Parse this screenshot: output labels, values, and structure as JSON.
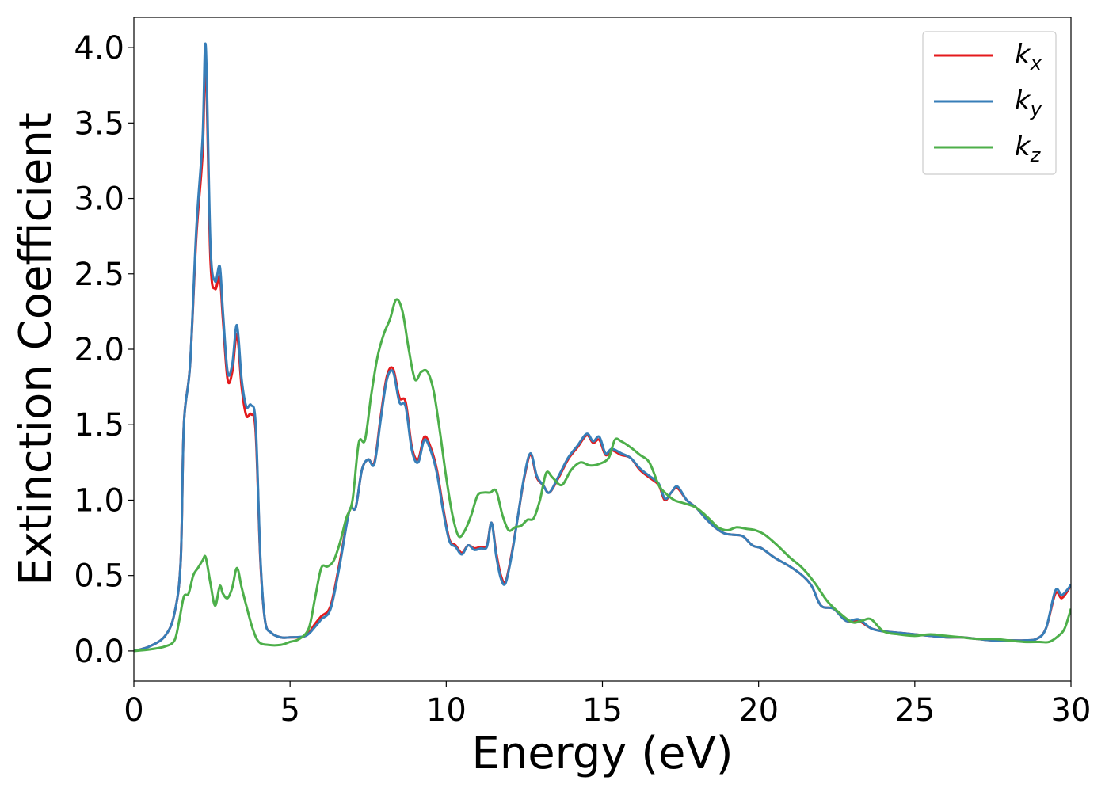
{
  "chart_data": {
    "type": "line",
    "title": "",
    "xlabel": "Energy (eV)",
    "ylabel": "Extinction Coefficient",
    "xlim": [
      0,
      30
    ],
    "ylim": [
      -0.2,
      4.2
    ],
    "xticks": [
      0,
      5,
      10,
      15,
      20,
      25,
      30
    ],
    "xtick_labels": [
      "0",
      "5",
      "10",
      "15",
      "20",
      "25",
      "30"
    ],
    "yticks": [
      0.0,
      0.5,
      1.0,
      1.5,
      2.0,
      2.5,
      3.0,
      3.5,
      4.0
    ],
    "ytick_labels": [
      "0.0",
      "0.5",
      "1.0",
      "1.5",
      "2.0",
      "2.5",
      "3.0",
      "3.5",
      "4.0"
    ],
    "grid": false,
    "legend_position": "top-right",
    "series": [
      {
        "name": "k_x",
        "label_base": "k",
        "label_sub": "x",
        "color": "#e41a1c",
        "x": [
          0,
          0.5,
          1,
          1.3,
          1.5,
          1.6,
          1.8,
          2.0,
          2.2,
          2.3,
          2.45,
          2.6,
          2.75,
          2.85,
          3.0,
          3.15,
          3.3,
          3.45,
          3.6,
          3.75,
          3.9,
          4.05,
          4.2,
          4.4,
          4.7,
          5.0,
          5.5,
          5.8,
          6.0,
          6.3,
          6.6,
          6.9,
          7.1,
          7.3,
          7.5,
          7.7,
          7.9,
          8.1,
          8.3,
          8.5,
          8.7,
          8.9,
          9.1,
          9.3,
          9.5,
          9.7,
          9.9,
          10.1,
          10.3,
          10.5,
          10.7,
          10.9,
          11.1,
          11.3,
          11.45,
          11.6,
          11.75,
          11.9,
          12.1,
          12.3,
          12.5,
          12.7,
          12.9,
          13.1,
          13.3,
          13.6,
          13.9,
          14.2,
          14.5,
          14.7,
          14.9,
          15.1,
          15.3,
          15.6,
          15.9,
          16.2,
          16.5,
          16.8,
          17.0,
          17.2,
          17.4,
          17.7,
          18.0,
          18.3,
          18.6,
          18.9,
          19.2,
          19.5,
          19.8,
          20.1,
          20.5,
          21.0,
          21.4,
          21.7,
          22.0,
          22.4,
          22.8,
          23.2,
          23.6,
          24.0,
          24.5,
          25.0,
          25.5,
          26.0,
          26.5,
          27.0,
          27.5,
          28.0,
          28.5,
          28.9,
          29.2,
          29.5,
          29.7,
          29.9,
          30.0
        ],
        "y": [
          0.0,
          0.03,
          0.1,
          0.25,
          0.6,
          1.5,
          1.9,
          2.75,
          3.3,
          3.9,
          2.6,
          2.4,
          2.48,
          2.2,
          1.8,
          1.85,
          2.1,
          1.75,
          1.56,
          1.57,
          1.45,
          0.6,
          0.2,
          0.12,
          0.09,
          0.09,
          0.1,
          0.18,
          0.23,
          0.3,
          0.6,
          0.93,
          0.95,
          1.2,
          1.27,
          1.25,
          1.55,
          1.82,
          1.87,
          1.68,
          1.65,
          1.35,
          1.27,
          1.42,
          1.35,
          1.2,
          0.95,
          0.74,
          0.7,
          0.65,
          0.7,
          0.68,
          0.69,
          0.7,
          0.85,
          0.65,
          0.5,
          0.46,
          0.65,
          0.9,
          1.15,
          1.3,
          1.15,
          1.1,
          1.05,
          1.15,
          1.27,
          1.35,
          1.43,
          1.38,
          1.4,
          1.3,
          1.33,
          1.3,
          1.28,
          1.2,
          1.15,
          1.1,
          1.0,
          1.05,
          1.08,
          1.0,
          0.95,
          0.88,
          0.82,
          0.78,
          0.77,
          0.76,
          0.7,
          0.68,
          0.62,
          0.56,
          0.5,
          0.43,
          0.3,
          0.28,
          0.2,
          0.2,
          0.15,
          0.13,
          0.12,
          0.11,
          0.1,
          0.09,
          0.09,
          0.08,
          0.07,
          0.07,
          0.07,
          0.08,
          0.15,
          0.38,
          0.35,
          0.4,
          0.44
        ]
      },
      {
        "name": "k_y",
        "label_base": "k",
        "label_sub": "y",
        "color": "#377eb8",
        "x": [
          0,
          0.5,
          1,
          1.3,
          1.5,
          1.6,
          1.8,
          2.0,
          2.2,
          2.3,
          2.45,
          2.6,
          2.75,
          2.85,
          3.0,
          3.15,
          3.3,
          3.45,
          3.6,
          3.75,
          3.9,
          4.05,
          4.2,
          4.4,
          4.7,
          5.0,
          5.5,
          5.8,
          6.0,
          6.3,
          6.6,
          6.9,
          7.1,
          7.3,
          7.5,
          7.7,
          7.9,
          8.1,
          8.3,
          8.5,
          8.7,
          8.9,
          9.1,
          9.3,
          9.5,
          9.7,
          9.9,
          10.1,
          10.3,
          10.5,
          10.7,
          10.9,
          11.1,
          11.3,
          11.45,
          11.6,
          11.75,
          11.9,
          12.1,
          12.3,
          12.5,
          12.7,
          12.9,
          13.1,
          13.3,
          13.6,
          13.9,
          14.2,
          14.5,
          14.7,
          14.9,
          15.1,
          15.3,
          15.6,
          15.9,
          16.2,
          16.5,
          16.8,
          17.0,
          17.2,
          17.4,
          17.7,
          18.0,
          18.3,
          18.6,
          18.9,
          19.2,
          19.5,
          19.8,
          20.1,
          20.5,
          21.0,
          21.4,
          21.7,
          22.0,
          22.4,
          22.8,
          23.2,
          23.6,
          24.0,
          24.5,
          25.0,
          25.5,
          26.0,
          26.5,
          27.0,
          27.5,
          28.0,
          28.5,
          28.9,
          29.2,
          29.5,
          29.7,
          29.9,
          30.0
        ],
        "y": [
          0.0,
          0.03,
          0.1,
          0.25,
          0.6,
          1.5,
          1.9,
          2.8,
          3.4,
          4.01,
          2.7,
          2.45,
          2.55,
          2.25,
          1.85,
          1.9,
          2.16,
          1.8,
          1.62,
          1.63,
          1.5,
          0.62,
          0.2,
          0.12,
          0.09,
          0.09,
          0.1,
          0.16,
          0.21,
          0.28,
          0.58,
          0.93,
          0.95,
          1.2,
          1.27,
          1.24,
          1.53,
          1.8,
          1.85,
          1.65,
          1.62,
          1.33,
          1.25,
          1.4,
          1.33,
          1.18,
          0.93,
          0.73,
          0.69,
          0.64,
          0.7,
          0.67,
          0.68,
          0.69,
          0.85,
          0.63,
          0.48,
          0.45,
          0.64,
          0.9,
          1.16,
          1.31,
          1.16,
          1.1,
          1.05,
          1.16,
          1.28,
          1.36,
          1.44,
          1.39,
          1.42,
          1.31,
          1.34,
          1.31,
          1.28,
          1.21,
          1.16,
          1.11,
          1.01,
          1.05,
          1.09,
          1.0,
          0.95,
          0.88,
          0.82,
          0.78,
          0.77,
          0.76,
          0.7,
          0.68,
          0.62,
          0.56,
          0.5,
          0.43,
          0.3,
          0.28,
          0.2,
          0.21,
          0.15,
          0.13,
          0.12,
          0.11,
          0.1,
          0.09,
          0.09,
          0.08,
          0.07,
          0.07,
          0.07,
          0.08,
          0.15,
          0.4,
          0.37,
          0.41,
          0.44
        ]
      },
      {
        "name": "k_z",
        "label_base": "k",
        "label_sub": "z",
        "color": "#4daf4a",
        "x": [
          0,
          0.5,
          1,
          1.3,
          1.45,
          1.6,
          1.75,
          1.9,
          2.05,
          2.2,
          2.3,
          2.45,
          2.6,
          2.75,
          2.85,
          3.0,
          3.15,
          3.3,
          3.45,
          3.6,
          3.8,
          4.0,
          4.3,
          4.7,
          5.0,
          5.3,
          5.6,
          5.8,
          6.0,
          6.2,
          6.4,
          6.6,
          6.8,
          7.0,
          7.2,
          7.4,
          7.6,
          7.8,
          8.0,
          8.2,
          8.4,
          8.6,
          8.8,
          9.0,
          9.2,
          9.4,
          9.6,
          9.8,
          10.0,
          10.2,
          10.4,
          10.6,
          10.8,
          11.0,
          11.2,
          11.4,
          11.6,
          11.8,
          12.0,
          12.2,
          12.4,
          12.6,
          12.8,
          13.0,
          13.2,
          13.4,
          13.7,
          14.0,
          14.3,
          14.6,
          14.9,
          15.2,
          15.4,
          15.6,
          15.9,
          16.2,
          16.5,
          16.8,
          17.0,
          17.3,
          17.6,
          18.0,
          18.4,
          18.7,
          19.0,
          19.3,
          19.6,
          19.9,
          20.2,
          20.6,
          21.0,
          21.4,
          21.8,
          22.2,
          22.6,
          23.0,
          23.3,
          23.6,
          24.0,
          24.5,
          25.0,
          25.5,
          26.0,
          26.5,
          27.0,
          27.5,
          28.0,
          28.5,
          29.0,
          29.3,
          29.6,
          29.8,
          30.0
        ],
        "y": [
          0.0,
          0.01,
          0.03,
          0.07,
          0.2,
          0.36,
          0.38,
          0.5,
          0.55,
          0.6,
          0.62,
          0.45,
          0.3,
          0.43,
          0.38,
          0.35,
          0.42,
          0.55,
          0.42,
          0.3,
          0.15,
          0.06,
          0.04,
          0.04,
          0.06,
          0.08,
          0.15,
          0.35,
          0.55,
          0.56,
          0.6,
          0.72,
          0.88,
          1.0,
          1.38,
          1.4,
          1.7,
          1.95,
          2.1,
          2.2,
          2.33,
          2.25,
          2.0,
          1.8,
          1.85,
          1.85,
          1.72,
          1.45,
          1.15,
          0.9,
          0.76,
          0.8,
          0.9,
          1.03,
          1.05,
          1.05,
          1.06,
          0.9,
          0.8,
          0.82,
          0.83,
          0.87,
          0.88,
          1.0,
          1.18,
          1.15,
          1.1,
          1.2,
          1.25,
          1.23,
          1.24,
          1.28,
          1.4,
          1.39,
          1.35,
          1.3,
          1.25,
          1.1,
          1.05,
          1.0,
          0.98,
          0.95,
          0.88,
          0.82,
          0.8,
          0.82,
          0.81,
          0.8,
          0.77,
          0.7,
          0.62,
          0.55,
          0.45,
          0.33,
          0.25,
          0.19,
          0.2,
          0.21,
          0.13,
          0.11,
          0.1,
          0.11,
          0.1,
          0.09,
          0.08,
          0.08,
          0.07,
          0.06,
          0.06,
          0.06,
          0.1,
          0.15,
          0.28
        ]
      }
    ]
  }
}
